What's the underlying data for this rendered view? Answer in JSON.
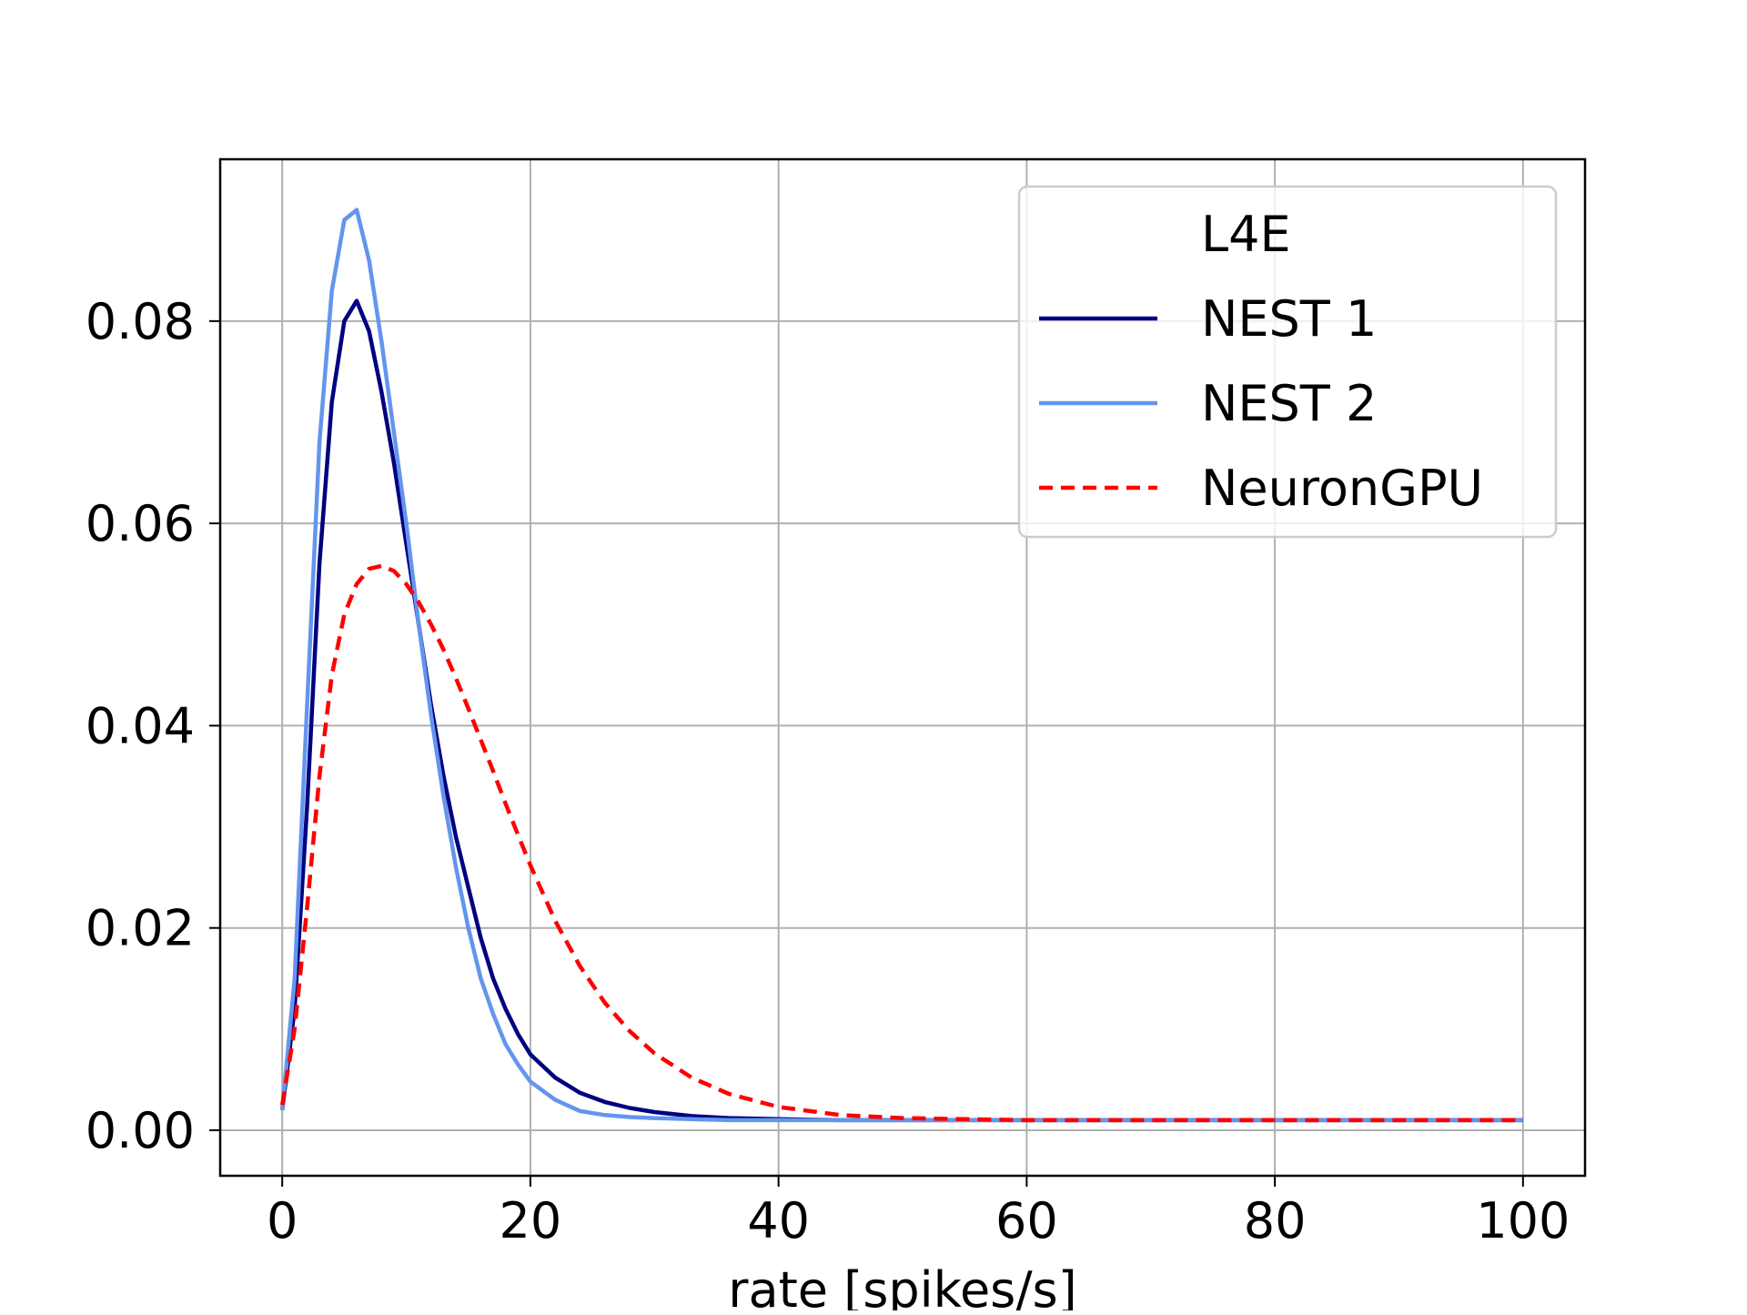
{
  "chart_data": {
    "type": "line",
    "title": "",
    "xlabel": "rate [spikes/s]",
    "ylabel": "",
    "xlim": [
      -5,
      105
    ],
    "ylim": [
      -0.0045,
      0.096
    ],
    "xticks": [
      0,
      20,
      40,
      60,
      80,
      100
    ],
    "xtick_labels": [
      "0",
      "20",
      "40",
      "60",
      "80",
      "100"
    ],
    "yticks": [
      0.0,
      0.02,
      0.04,
      0.06,
      0.08
    ],
    "ytick_labels": [
      "0.00",
      "0.02",
      "0.04",
      "0.06",
      "0.08"
    ],
    "grid": true,
    "legend": {
      "title": "L4E",
      "placement": "top-right"
    },
    "series": [
      {
        "name": "NEST 1",
        "color": "#000080",
        "style": "solid",
        "x": [
          0,
          1,
          2,
          3,
          4,
          5,
          6,
          7,
          8,
          9,
          10,
          11,
          12,
          13,
          14,
          15,
          16,
          17,
          18,
          19,
          20,
          22,
          24,
          26,
          28,
          30,
          33,
          36,
          40,
          45,
          50,
          60,
          70,
          80,
          90,
          100
        ],
        "y": [
          0.002,
          0.012,
          0.032,
          0.056,
          0.072,
          0.08,
          0.082,
          0.079,
          0.073,
          0.066,
          0.058,
          0.05,
          0.042,
          0.035,
          0.029,
          0.024,
          0.019,
          0.015,
          0.012,
          0.0095,
          0.0075,
          0.0052,
          0.0037,
          0.0028,
          0.0022,
          0.0018,
          0.0014,
          0.0012,
          0.0011,
          0.001,
          0.001,
          0.001,
          0.001,
          0.001,
          0.001,
          0.001
        ]
      },
      {
        "name": "NEST 2",
        "color": "#6495ED",
        "style": "solid",
        "x": [
          0,
          1,
          2,
          3,
          4,
          5,
          6,
          7,
          8,
          9,
          10,
          11,
          12,
          13,
          14,
          15,
          16,
          17,
          18,
          19,
          20,
          22,
          24,
          26,
          28,
          30,
          33,
          36,
          40,
          45,
          50,
          60,
          70,
          80,
          90,
          100
        ],
        "y": [
          0.002,
          0.015,
          0.042,
          0.068,
          0.083,
          0.09,
          0.091,
          0.086,
          0.078,
          0.069,
          0.06,
          0.05,
          0.041,
          0.033,
          0.026,
          0.02,
          0.015,
          0.0115,
          0.0085,
          0.0065,
          0.0048,
          0.003,
          0.0019,
          0.0015,
          0.0013,
          0.0012,
          0.0011,
          0.001,
          0.001,
          0.001,
          0.001,
          0.001,
          0.001,
          0.001,
          0.001,
          0.001
        ]
      },
      {
        "name": "NeuronGPU",
        "color": "#FF0000",
        "style": "dashed",
        "x": [
          0,
          1,
          2,
          3,
          4,
          5,
          6,
          7,
          8,
          9,
          10,
          11,
          12,
          13,
          14,
          15,
          16,
          17,
          18,
          19,
          20,
          22,
          24,
          26,
          28,
          30,
          33,
          36,
          40,
          45,
          50,
          55,
          60,
          70,
          80,
          90,
          100
        ],
        "y": [
          0.0025,
          0.01,
          0.022,
          0.035,
          0.045,
          0.051,
          0.054,
          0.0555,
          0.0558,
          0.0553,
          0.054,
          0.0522,
          0.05,
          0.0475,
          0.0447,
          0.0417,
          0.0386,
          0.0355,
          0.0323,
          0.0292,
          0.0262,
          0.0207,
          0.0162,
          0.0126,
          0.0098,
          0.0076,
          0.0052,
          0.0036,
          0.0023,
          0.0015,
          0.0012,
          0.0011,
          0.001,
          0.001,
          0.001,
          0.001,
          0.001
        ]
      }
    ]
  }
}
